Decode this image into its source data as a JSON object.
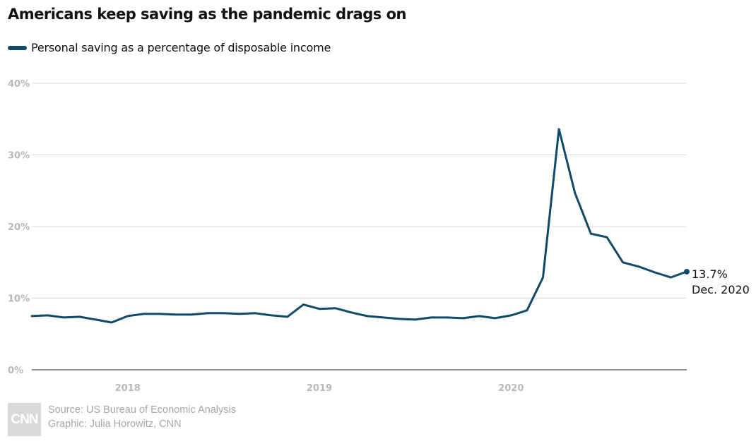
{
  "header": {
    "title": "Americans keep saving as the pandemic drags on"
  },
  "legend": {
    "label": "Personal saving as a percentage of disposable income",
    "color": "#0e4a6a"
  },
  "annotation": {
    "value_label": "13.7%",
    "date_label": "Dec. 2020"
  },
  "footer": {
    "logo_text": "CNN",
    "source": "Source: US Bureau of Economic Analysis",
    "graphic": "Graphic: Julia Horowitz, CNN"
  },
  "chart_data": {
    "type": "line",
    "title": "Americans keep saving as the pandemic drags on",
    "xlabel": "",
    "ylabel": "",
    "ylim": [
      0,
      40
    ],
    "yticks": [
      0,
      10,
      20,
      30,
      40
    ],
    "ytick_labels": [
      "0%",
      "10%",
      "20%",
      "30%",
      "40%"
    ],
    "xtick_labels": [
      "2018",
      "2019",
      "2020"
    ],
    "xtick_dates": [
      "2018-01",
      "2019-01",
      "2020-01"
    ],
    "x_range": [
      "2017-07",
      "2020-12"
    ],
    "grid": true,
    "legend_position": "top-left",
    "series": [
      {
        "name": "Personal saving as a percentage of disposable income",
        "color": "#0e4a6a",
        "x": [
          "2017-07",
          "2017-08",
          "2017-09",
          "2017-10",
          "2017-11",
          "2017-12",
          "2018-01",
          "2018-02",
          "2018-03",
          "2018-04",
          "2018-05",
          "2018-06",
          "2018-07",
          "2018-08",
          "2018-09",
          "2018-10",
          "2018-11",
          "2018-12",
          "2019-01",
          "2019-02",
          "2019-03",
          "2019-04",
          "2019-05",
          "2019-06",
          "2019-07",
          "2019-08",
          "2019-09",
          "2019-10",
          "2019-11",
          "2019-12",
          "2020-01",
          "2020-02",
          "2020-03",
          "2020-04",
          "2020-05",
          "2020-06",
          "2020-07",
          "2020-08",
          "2020-09",
          "2020-10",
          "2020-11",
          "2020-12"
        ],
        "values": [
          7.5,
          7.6,
          7.3,
          7.4,
          7.0,
          6.6,
          7.5,
          7.8,
          7.8,
          7.7,
          7.7,
          7.9,
          7.9,
          7.8,
          7.9,
          7.6,
          7.4,
          9.1,
          8.5,
          8.6,
          8.0,
          7.5,
          7.3,
          7.1,
          7.0,
          7.3,
          7.3,
          7.2,
          7.5,
          7.2,
          7.6,
          8.3,
          12.9,
          33.6,
          24.7,
          19.0,
          18.5,
          15.0,
          14.4,
          13.6,
          12.9,
          13.7
        ]
      }
    ]
  }
}
